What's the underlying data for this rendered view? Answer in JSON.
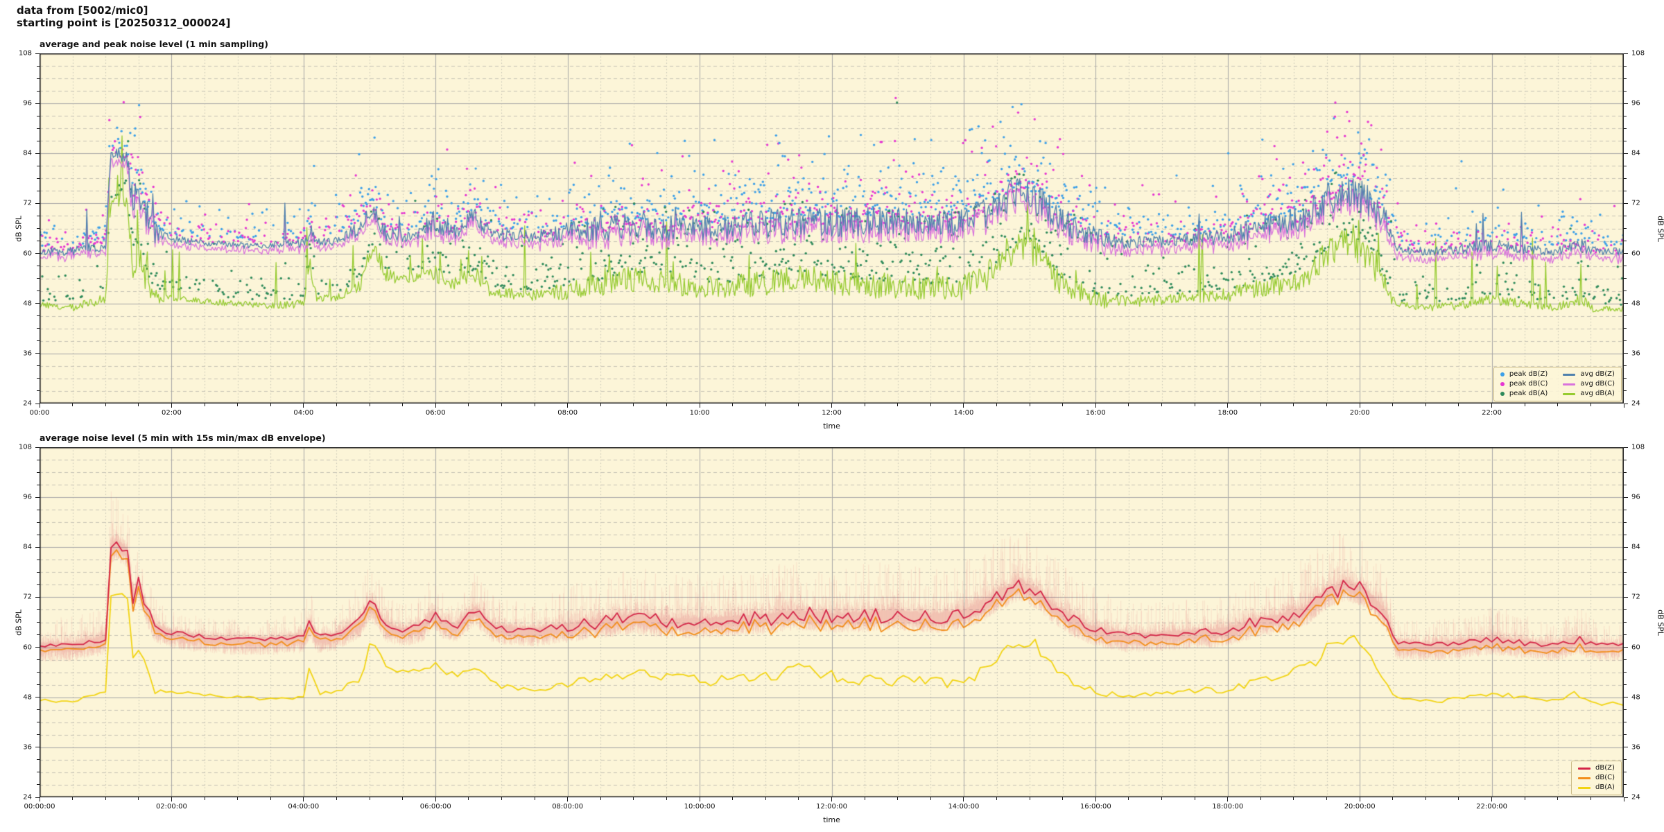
{
  "header": {
    "line1": "data from [5002/mic0]",
    "line2": "starting point is [20250312_000024]"
  },
  "chart_data": [
    {
      "type": "line+scatter",
      "title": "average and peak noise level (1 min sampling)",
      "xlabel": "time",
      "ylabel": "dB SPL",
      "ylim": [
        24,
        108
      ],
      "yticks": [
        "24",
        "36",
        "48",
        "60",
        "72",
        "84",
        "96",
        "108"
      ],
      "minor_y_db": 3,
      "xlim_hours": [
        0,
        24
      ],
      "xtick_hours": [
        0,
        2,
        4,
        6,
        8,
        10,
        12,
        14,
        16,
        18,
        20,
        22
      ],
      "xtick_labels": [
        "00:00",
        "02:00",
        "04:00",
        "06:00",
        "08:00",
        "10:00",
        "12:00",
        "14:00",
        "16:00",
        "18:00",
        "20:00",
        "22:00"
      ],
      "minor_x_hours": 0.5,
      "grid": {
        "major": true,
        "minor": true
      },
      "sampling_minutes": 1,
      "anchors": {
        "t_hours": [
          0.0,
          0.5,
          1.0,
          1.08,
          1.17,
          1.33,
          1.42,
          1.5,
          1.6,
          1.75,
          2.0,
          2.5,
          3.0,
          3.5,
          4.0,
          4.1,
          4.2,
          4.5,
          4.85,
          5.0,
          5.1,
          5.25,
          5.5,
          5.8,
          5.95,
          6.1,
          6.3,
          6.6,
          6.85,
          7.0,
          7.5,
          8.0,
          8.5,
          9.0,
          9.5,
          10.0,
          10.5,
          11.0,
          11.5,
          12.0,
          12.5,
          13.0,
          13.5,
          14.0,
          14.3,
          14.6,
          14.85,
          15.1,
          15.4,
          15.7,
          16.0,
          16.5,
          17.0,
          17.5,
          18.0,
          18.4,
          18.8,
          19.2,
          19.5,
          19.8,
          20.1,
          20.4,
          20.55,
          21.0,
          21.5,
          22.0,
          22.5,
          23.0,
          23.3,
          23.6,
          24.0
        ],
        "avg_db_z": [
          60.5,
          60.5,
          62,
          84,
          84.5,
          83,
          72,
          75,
          70,
          65,
          63.5,
          62.5,
          62,
          62,
          62.5,
          66,
          62.5,
          63,
          66,
          70,
          69,
          65,
          64,
          65,
          68,
          66,
          65,
          69,
          65,
          64.5,
          64,
          65,
          66,
          67,
          66,
          66,
          66.5,
          67,
          68,
          67,
          67.5,
          68,
          67,
          68,
          70,
          73,
          75,
          73,
          69,
          66,
          64,
          62.5,
          63,
          63.5,
          64,
          66,
          67,
          69,
          73,
          75,
          73,
          68,
          61,
          60.5,
          61,
          62,
          61,
          60.5,
          62,
          60.5,
          60.5
        ],
        "avg_db_c": [
          59.3,
          59.3,
          60.8,
          82,
          82.5,
          81,
          70,
          73,
          68,
          63.5,
          62.2,
          61.3,
          60.8,
          60.8,
          61.3,
          64.5,
          61.3,
          61.8,
          64.5,
          68.3,
          67.3,
          63.5,
          62.5,
          63.5,
          66.3,
          64.3,
          63.3,
          67.3,
          63.3,
          62.8,
          62.3,
          63.2,
          64,
          65,
          64,
          64,
          64.5,
          65,
          66,
          65,
          65.5,
          66,
          65,
          66,
          68,
          71,
          73,
          71,
          67,
          64,
          62,
          60.7,
          61.2,
          61.7,
          62.2,
          64,
          65,
          67,
          71,
          73,
          71,
          66,
          59.3,
          58.8,
          59.3,
          60.2,
          59.3,
          58.8,
          60.2,
          58.8,
          58.8
        ],
        "avg_db_a": [
          47.5,
          47,
          49,
          72,
          72.5,
          72,
          57,
          60,
          55,
          50,
          49.5,
          48.5,
          48,
          47.5,
          48,
          57,
          49,
          49.5,
          52,
          60.5,
          60.5,
          55,
          54,
          55,
          56,
          54,
          53,
          55,
          51,
          50.5,
          50,
          51,
          52.5,
          54,
          53,
          52,
          52,
          53,
          54.5,
          53,
          52.5,
          52,
          51.5,
          52,
          54,
          58,
          62,
          60,
          54,
          51,
          49,
          48.5,
          49,
          49.5,
          50,
          51.5,
          52.5,
          55,
          60,
          63,
          60,
          52,
          47.5,
          47,
          47.5,
          49,
          48,
          47,
          49,
          46.5,
          46.5
        ],
        "variability": [
          1,
          1,
          1.5,
          1.5,
          1.5,
          2,
          4,
          4,
          4,
          2.5,
          1,
          0.8,
          0.8,
          0.8,
          1.2,
          2,
          1,
          1,
          2,
          2.5,
          2.5,
          2,
          1.5,
          2,
          2.5,
          2,
          2,
          2.5,
          2,
          1.5,
          1.5,
          2.5,
          3,
          3.5,
          3,
          3,
          3,
          3.5,
          3.5,
          3.5,
          3.5,
          3.5,
          3,
          3.5,
          4,
          4,
          4,
          4,
          3.5,
          3,
          2.5,
          1.5,
          1.5,
          1.5,
          2,
          2.5,
          3,
          3.5,
          4,
          4,
          4,
          3,
          1,
          1,
          1.2,
          1.5,
          1.2,
          1,
          2,
          1,
          1
        ]
      },
      "scatter_outliers": [
        {
          "series": "peak_c",
          "t": 12.97,
          "db": 97.3
        },
        {
          "series": "peak_a",
          "t": 12.99,
          "db": 96.2
        },
        {
          "series": "peak_c",
          "t": 19.63,
          "db": 96.2
        },
        {
          "series": "peak_z",
          "t": 1.45,
          "db": 90.0
        }
      ],
      "colors": {
        "peak_z": "#3da0e8",
        "peak_c": "#e637d2",
        "peak_a": "#2f8b5b",
        "avg_z": "#4f81ad",
        "avg_c": "#d973dc",
        "avg_a": "#96cb31",
        "plot_bg": "#fcf5d8",
        "grid_major": "#a6a6a6",
        "grid_minor": "#c6c3b5",
        "spine": "#1a1a1a"
      },
      "legend": {
        "position": "lower right",
        "columns": [
          [
            {
              "label": "peak dB(Z)",
              "marker": "dot",
              "color": "peak_z"
            },
            {
              "label": "peak dB(C)",
              "marker": "dot",
              "color": "peak_c"
            },
            {
              "label": "peak dB(A)",
              "marker": "dot",
              "color": "peak_a"
            }
          ],
          [
            {
              "label": "avg dB(Z)",
              "marker": "line",
              "color": "avg_z"
            },
            {
              "label": "avg dB(C)",
              "marker": "line",
              "color": "avg_c"
            },
            {
              "label": "avg dB(A)",
              "marker": "line",
              "color": "avg_a"
            }
          ]
        ]
      }
    },
    {
      "type": "line+envelope",
      "title": "average noise level (5 min with 15s min/max dB envelope)",
      "xlabel": "time",
      "ylabel": "dB SPL",
      "ylim": [
        24,
        108
      ],
      "yticks": [
        "24",
        "36",
        "48",
        "60",
        "72",
        "84",
        "96",
        "108"
      ],
      "minor_y_db": 3,
      "xlim_hours": [
        0,
        24
      ],
      "xtick_hours": [
        0,
        2,
        4,
        6,
        8,
        10,
        12,
        14,
        16,
        18,
        20,
        22
      ],
      "xtick_labels": [
        "00:00:00",
        "02:00:00",
        "04:00:00",
        "06:00:00",
        "08:00:00",
        "10:00:00",
        "12:00:00",
        "14:00:00",
        "16:00:00",
        "18:00:00",
        "20:00:00",
        "22:00:00"
      ],
      "minor_x_hours": 0.5,
      "grid": {
        "major": true,
        "minor": true
      },
      "sampling_minutes": 5,
      "inherits_anchors_from_chart": 0,
      "anchors": {
        "envelope_up_db": [
          6,
          6,
          8,
          12,
          12,
          10,
          8,
          8,
          7,
          6,
          5,
          4,
          4,
          4,
          6,
          8,
          5,
          5,
          8,
          9,
          8,
          7,
          6,
          7,
          8,
          7,
          7,
          8,
          7,
          6,
          6,
          9,
          10,
          11,
          10,
          10,
          10,
          11,
          11,
          11,
          11,
          11,
          10,
          11,
          12,
          12,
          12,
          12,
          11,
          10,
          9,
          7,
          7,
          7,
          8,
          9,
          10,
          11,
          12,
          12,
          11,
          9,
          5,
          5,
          6,
          7,
          6,
          5,
          7,
          5,
          5
        ],
        "envelope_down_db": 3
      },
      "colors": {
        "db_z": "#d42547",
        "db_c": "#f28e1b",
        "db_a": "#f2d413",
        "envelope": "rgba(212,37,71,0.10)",
        "plot_bg": "#fcf5d8",
        "grid_major": "#a6a6a6",
        "grid_minor": "#c6c3b5",
        "spine": "#1a1a1a"
      },
      "legend": {
        "position": "lower right",
        "columns": [
          [
            {
              "label": "dB(Z)",
              "marker": "line",
              "color": "db_z"
            },
            {
              "label": "dB(C)",
              "marker": "line",
              "color": "db_c"
            },
            {
              "label": "dB(A)",
              "marker": "line",
              "color": "db_a"
            }
          ]
        ]
      }
    }
  ]
}
